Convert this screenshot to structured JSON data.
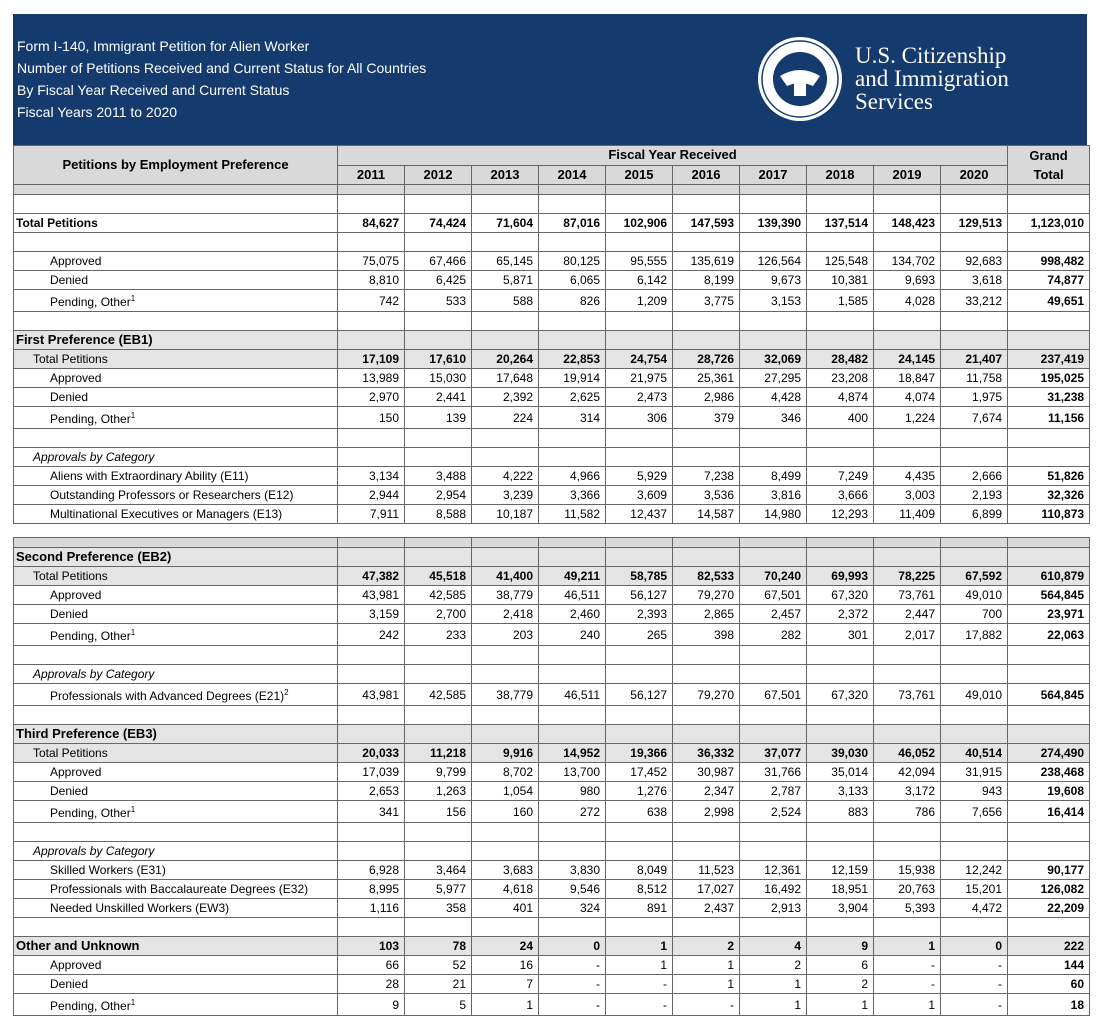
{
  "header": {
    "title_lines": [
      "Form I-140, Immigrant Petition for Alien Worker",
      "Number of Petitions Received and Current Status for All Countries",
      "By Fiscal Year Received and Current Status",
      "Fiscal Years 2011 to 2020"
    ],
    "agency_lines": [
      "U.S. Citizenship",
      "and Immigration",
      "Services"
    ]
  },
  "table": {
    "label_header": "Petitions by Employment Preference",
    "group_header": "Fiscal Year Received",
    "years": [
      "2011",
      "2012",
      "2013",
      "2014",
      "2015",
      "2016",
      "2017",
      "2018",
      "2019",
      "2020"
    ],
    "total_header": [
      "Grand",
      "Total"
    ],
    "groups": [
      [
        {
          "label": "Total Petitions",
          "style": "grand",
          "values": [
            "84,627",
            "74,424",
            "71,604",
            "87,016",
            "102,906",
            "147,593",
            "139,390",
            "137,514",
            "148,423",
            "129,513"
          ],
          "total": "1,123,010"
        }
      ],
      [
        {
          "label": "Approved",
          "values": [
            "75,075",
            "67,466",
            "65,145",
            "80,125",
            "95,555",
            "135,619",
            "126,564",
            "125,548",
            "134,702",
            "92,683"
          ],
          "total": "998,482"
        },
        {
          "label": "Denied",
          "values": [
            "8,810",
            "6,425",
            "5,871",
            "6,065",
            "6,142",
            "8,199",
            "9,673",
            "10,381",
            "9,693",
            "3,618"
          ],
          "total": "74,877"
        },
        {
          "label": "Pending, Other",
          "note": "1",
          "values": [
            "742",
            "533",
            "588",
            "826",
            "1,209",
            "3,775",
            "3,153",
            "1,585",
            "4,028",
            "33,212"
          ],
          "total": "49,651"
        }
      ],
      [
        {
          "label": "First Preference (EB1)",
          "style": "section"
        },
        {
          "label": "Total Petitions",
          "style": "total",
          "values": [
            "17,109",
            "17,610",
            "20,264",
            "22,853",
            "24,754",
            "28,726",
            "32,069",
            "28,482",
            "24,145",
            "21,407"
          ],
          "total": "237,419"
        },
        {
          "label": "Approved",
          "values": [
            "13,989",
            "15,030",
            "17,648",
            "19,914",
            "21,975",
            "25,361",
            "27,295",
            "23,208",
            "18,847",
            "11,758"
          ],
          "total": "195,025"
        },
        {
          "label": "Denied",
          "values": [
            "2,970",
            "2,441",
            "2,392",
            "2,625",
            "2,473",
            "2,986",
            "4,428",
            "4,874",
            "4,074",
            "1,975"
          ],
          "total": "31,238"
        },
        {
          "label": "Pending, Other",
          "note": "1",
          "values": [
            "150",
            "139",
            "224",
            "314",
            "306",
            "379",
            "346",
            "400",
            "1,224",
            "7,674"
          ],
          "total": "11,156"
        }
      ],
      [
        {
          "label": "Approvals by Category",
          "style": "category"
        },
        {
          "label": "Aliens with Extraordinary Ability (E11)",
          "values": [
            "3,134",
            "3,488",
            "4,222",
            "4,966",
            "5,929",
            "7,238",
            "8,499",
            "7,249",
            "4,435",
            "2,666"
          ],
          "total": "51,826"
        },
        {
          "label": "Outstanding Professors or Researchers (E12)",
          "values": [
            "2,944",
            "2,954",
            "3,239",
            "3,366",
            "3,609",
            "3,536",
            "3,816",
            "3,666",
            "3,003",
            "2,193"
          ],
          "total": "32,326"
        },
        {
          "label": "Multinational Executives or Managers (E13)",
          "values": [
            "7,911",
            "8,588",
            "10,187",
            "11,582",
            "12,437",
            "14,587",
            "14,980",
            "12,293",
            "11,409",
            "6,899"
          ],
          "total": "110,873"
        }
      ],
      [
        {
          "label": "Second Preference (EB2)",
          "style": "section"
        },
        {
          "label": "Total Petitions",
          "style": "total",
          "values": [
            "47,382",
            "45,518",
            "41,400",
            "49,211",
            "58,785",
            "82,533",
            "70,240",
            "69,993",
            "78,225",
            "67,592"
          ],
          "total": "610,879"
        },
        {
          "label": "Approved",
          "values": [
            "43,981",
            "42,585",
            "38,779",
            "46,511",
            "56,127",
            "79,270",
            "67,501",
            "67,320",
            "73,761",
            "49,010"
          ],
          "total": "564,845"
        },
        {
          "label": "Denied",
          "values": [
            "3,159",
            "2,700",
            "2,418",
            "2,460",
            "2,393",
            "2,865",
            "2,457",
            "2,372",
            "2,447",
            "700"
          ],
          "total": "23,971"
        },
        {
          "label": "Pending, Other",
          "note": "1",
          "values": [
            "242",
            "233",
            "203",
            "240",
            "265",
            "398",
            "282",
            "301",
            "2,017",
            "17,882"
          ],
          "total": "22,063"
        }
      ],
      [
        {
          "label": "Approvals by Category",
          "style": "category"
        },
        {
          "label": "Professionals with Advanced Degrees (E21)",
          "note": "2",
          "values": [
            "43,981",
            "42,585",
            "38,779",
            "46,511",
            "56,127",
            "79,270",
            "67,501",
            "67,320",
            "73,761",
            "49,010"
          ],
          "total": "564,845"
        }
      ],
      [
        {
          "label": "Third Preference (EB3)",
          "style": "section"
        },
        {
          "label": "Total Petitions",
          "style": "total",
          "values": [
            "20,033",
            "11,218",
            "9,916",
            "14,952",
            "19,366",
            "36,332",
            "37,077",
            "39,030",
            "46,052",
            "40,514"
          ],
          "total": "274,490"
        },
        {
          "label": "Approved",
          "values": [
            "17,039",
            "9,799",
            "8,702",
            "13,700",
            "17,452",
            "30,987",
            "31,766",
            "35,014",
            "42,094",
            "31,915"
          ],
          "total": "238,468"
        },
        {
          "label": "Denied",
          "values": [
            "2,653",
            "1,263",
            "1,054",
            "980",
            "1,276",
            "2,347",
            "2,787",
            "3,133",
            "3,172",
            "943"
          ],
          "total": "19,608"
        },
        {
          "label": "Pending, Other",
          "note": "1",
          "values": [
            "341",
            "156",
            "160",
            "272",
            "638",
            "2,998",
            "2,524",
            "883",
            "786",
            "7,656"
          ],
          "total": "16,414"
        }
      ],
      [
        {
          "label": "Approvals by Category",
          "style": "category"
        },
        {
          "label": "Skilled Workers (E31)",
          "values": [
            "6,928",
            "3,464",
            "3,683",
            "3,830",
            "8,049",
            "11,523",
            "12,361",
            "12,159",
            "15,938",
            "12,242"
          ],
          "total": "90,177"
        },
        {
          "label": "Professionals with Baccalaureate Degrees (E32)",
          "values": [
            "8,995",
            "5,977",
            "4,618",
            "9,546",
            "8,512",
            "17,027",
            "16,492",
            "18,951",
            "20,763",
            "15,201"
          ],
          "total": "126,082"
        },
        {
          "label": "Needed Unskilled Workers (EW3)",
          "values": [
            "1,116",
            "358",
            "401",
            "324",
            "891",
            "2,437",
            "2,913",
            "3,904",
            "5,393",
            "4,472"
          ],
          "total": "22,209"
        }
      ],
      [
        {
          "label": "Other and Unknown",
          "style": "section",
          "values": [
            "103",
            "78",
            "24",
            "0",
            "1",
            "2",
            "4",
            "9",
            "1",
            "0"
          ],
          "total": "222"
        },
        {
          "label": "Approved",
          "values": [
            "66",
            "52",
            "16",
            "-",
            "1",
            "1",
            "2",
            "6",
            "-",
            "-"
          ],
          "total": "144"
        },
        {
          "label": "Denied",
          "values": [
            "28",
            "21",
            "7",
            "-",
            "-",
            "1",
            "1",
            "2",
            "-",
            "-"
          ],
          "total": "60"
        },
        {
          "label": "Pending, Other",
          "note": "1",
          "values": [
            "9",
            "5",
            "1",
            "-",
            "-",
            "-",
            "1",
            "1",
            "1",
            "-"
          ],
          "total": "18"
        }
      ]
    ]
  }
}
